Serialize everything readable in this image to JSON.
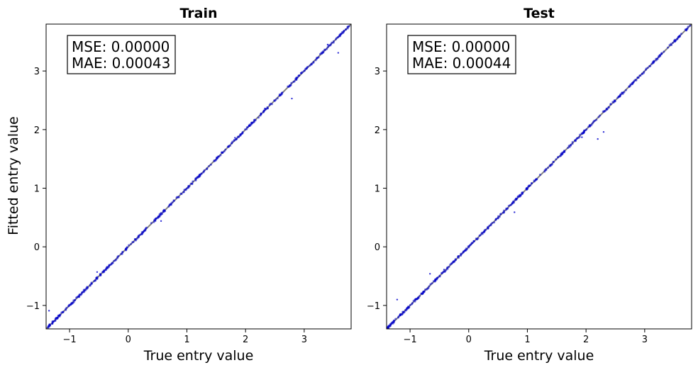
{
  "figure": {
    "ylabel": "Fitted entry value"
  },
  "chart_data": [
    {
      "type": "scatter",
      "title": "Train",
      "xlabel": "True entry value",
      "ylabel": "Fitted entry value",
      "xlim": [
        -1.4,
        3.8
      ],
      "ylim": [
        -1.4,
        3.8
      ],
      "xticks": [
        -1,
        0,
        1,
        2,
        3
      ],
      "xtick_labels": [
        "−1",
        "0",
        "1",
        "2",
        "3"
      ],
      "yticks": [
        -1,
        0,
        1,
        2,
        3
      ],
      "ytick_labels": [
        "−1",
        "0",
        "1",
        "2",
        "3"
      ],
      "grid": false,
      "marker_color": "#0000cc",
      "reference_line": {
        "x": [
          -1.4,
          3.8
        ],
        "y": [
          -1.4,
          3.8
        ],
        "color": "#808080"
      },
      "metrics": {
        "mse": "MSE: 0.00000",
        "mae": "MAE: 0.00043"
      },
      "outliers": [
        {
          "x": 2.79,
          "y": 2.53
        },
        {
          "x": 3.58,
          "y": 3.31
        },
        {
          "x": 0.56,
          "y": 0.44
        },
        {
          "x": -0.53,
          "y": -0.43
        },
        {
          "x": -1.35,
          "y": -1.09
        },
        {
          "x": 3.4,
          "y": 3.45
        },
        {
          "x": 1.82,
          "y": 1.86
        },
        {
          "x": 2.33,
          "y": 2.36
        }
      ]
    },
    {
      "type": "scatter",
      "title": "Test",
      "xlabel": "True entry value",
      "xlim": [
        -1.4,
        3.8
      ],
      "ylim": [
        -1.4,
        3.8
      ],
      "xticks": [
        -1,
        0,
        1,
        2,
        3
      ],
      "xtick_labels": [
        "−1",
        "0",
        "1",
        "2",
        "3"
      ],
      "yticks": [
        -1,
        0,
        1,
        2,
        3
      ],
      "ytick_labels": [
        "−1",
        "0",
        "1",
        "2",
        "3"
      ],
      "grid": false,
      "marker_color": "#0000cc",
      "reference_line": {
        "x": [
          -1.4,
          3.8
        ],
        "y": [
          -1.4,
          3.8
        ],
        "color": "#808080"
      },
      "metrics": {
        "mse": "MSE: 0.00000",
        "mae": "MAE: 0.00044"
      },
      "outliers": [
        {
          "x": -1.22,
          "y": -0.9
        },
        {
          "x": -0.66,
          "y": -0.46
        },
        {
          "x": 0.78,
          "y": 0.59
        },
        {
          "x": 2.2,
          "y": 1.84
        },
        {
          "x": 2.3,
          "y": 1.96
        },
        {
          "x": 1.93,
          "y": 1.87
        },
        {
          "x": -0.42,
          "y": -0.39
        }
      ]
    }
  ]
}
